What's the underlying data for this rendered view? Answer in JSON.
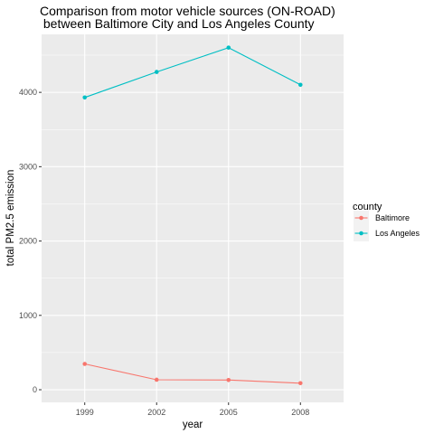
{
  "chart_data": {
    "type": "line",
    "title_lines": [
      "Comparison from motor vehicle sources (ON-ROAD)",
      " between Baltimore City and Los Angeles County"
    ],
    "xlabel": "year",
    "ylabel": "total PM2.5 emission",
    "categories": [
      "1999",
      "2002",
      "2005",
      "2008"
    ],
    "y_ticks": [
      0,
      1000,
      2000,
      3000,
      4000
    ],
    "y_tick_labels": [
      "0",
      "1000",
      "2000",
      "3000",
      "4000"
    ],
    "ylim": [
      -170,
      4780
    ],
    "grid": true,
    "legend": {
      "title": "county",
      "placement": "right"
    },
    "series": [
      {
        "name": "Baltimore",
        "color": "#F8766D",
        "values": [
          346.8,
          134.3,
          130.4,
          88.3
        ]
      },
      {
        "name": "Los Angeles",
        "color": "#00BFC4",
        "values": [
          3931.1,
          4274.0,
          4601.4,
          4101.3
        ]
      }
    ]
  }
}
